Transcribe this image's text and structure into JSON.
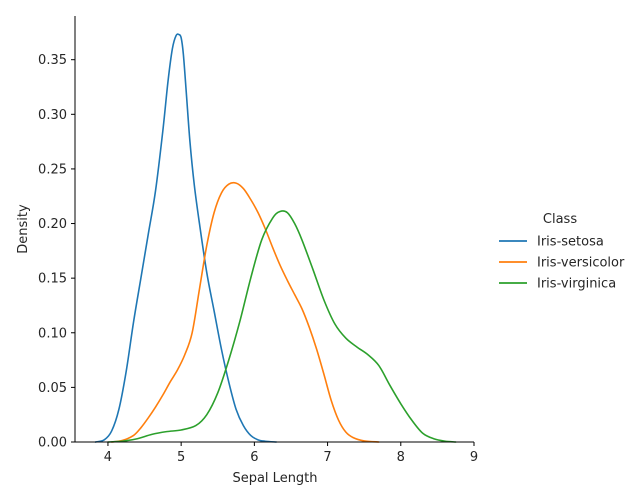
{
  "chart_data": {
    "type": "line",
    "title": "",
    "xlabel": "Sepal Length",
    "ylabel": "Density",
    "xlim": [
      3.55,
      9.0
    ],
    "ylim": [
      0,
      0.39
    ],
    "xticks": [
      4,
      5,
      6,
      7,
      8,
      9
    ],
    "yticks": [
      0.0,
      0.05,
      0.1,
      0.15,
      0.2,
      0.25,
      0.3,
      0.35
    ],
    "xtick_labels": [
      "4",
      "5",
      "6",
      "7",
      "8",
      "9"
    ],
    "ytick_labels": [
      "0.00",
      "0.05",
      "0.10",
      "0.15",
      "0.20",
      "0.25",
      "0.30",
      "0.35"
    ],
    "grid": false,
    "legend": {
      "title": "Class",
      "position": "right"
    },
    "series": [
      {
        "name": "Iris-setosa",
        "color": "#1f77b4",
        "x": [
          3.83,
          3.95,
          4.05,
          4.15,
          4.25,
          4.35,
          4.45,
          4.55,
          4.65,
          4.75,
          4.82,
          4.88,
          4.93,
          4.97,
          5.0,
          5.03,
          5.07,
          5.12,
          5.18,
          5.25,
          5.35,
          5.45,
          5.55,
          5.65,
          5.75,
          5.85,
          5.95,
          6.05,
          6.15,
          6.3
        ],
        "y": [
          0.0,
          0.002,
          0.01,
          0.03,
          0.065,
          0.11,
          0.15,
          0.19,
          0.23,
          0.285,
          0.33,
          0.36,
          0.372,
          0.373,
          0.37,
          0.355,
          0.32,
          0.275,
          0.235,
          0.2,
          0.155,
          0.12,
          0.085,
          0.055,
          0.03,
          0.015,
          0.006,
          0.002,
          0.0007,
          0.0
        ]
      },
      {
        "name": "Iris-versicolor",
        "color": "#ff7f0e",
        "x": [
          4.05,
          4.2,
          4.35,
          4.45,
          4.55,
          4.65,
          4.75,
          4.85,
          4.95,
          5.05,
          5.15,
          5.25,
          5.35,
          5.45,
          5.55,
          5.65,
          5.75,
          5.85,
          5.95,
          6.05,
          6.15,
          6.25,
          6.35,
          6.45,
          6.55,
          6.65,
          6.75,
          6.85,
          6.95,
          7.05,
          7.15,
          7.25,
          7.35,
          7.5,
          7.7
        ],
        "y": [
          0.0,
          0.0015,
          0.006,
          0.013,
          0.022,
          0.032,
          0.043,
          0.055,
          0.066,
          0.08,
          0.1,
          0.14,
          0.18,
          0.21,
          0.228,
          0.236,
          0.237,
          0.232,
          0.222,
          0.21,
          0.195,
          0.178,
          0.162,
          0.148,
          0.135,
          0.122,
          0.105,
          0.085,
          0.062,
          0.038,
          0.02,
          0.009,
          0.004,
          0.001,
          0.0
        ]
      },
      {
        "name": "Iris-virginica",
        "color": "#2ca02c",
        "x": [
          4.0,
          4.2,
          4.4,
          4.6,
          4.8,
          5.0,
          5.2,
          5.35,
          5.5,
          5.65,
          5.8,
          5.95,
          6.1,
          6.25,
          6.35,
          6.45,
          6.55,
          6.65,
          6.8,
          6.95,
          7.1,
          7.25,
          7.4,
          7.55,
          7.7,
          7.85,
          8.0,
          8.15,
          8.3,
          8.45,
          8.6,
          8.75
        ],
        "y": [
          0.0,
          0.0008,
          0.003,
          0.007,
          0.0095,
          0.011,
          0.015,
          0.025,
          0.045,
          0.075,
          0.11,
          0.15,
          0.185,
          0.205,
          0.211,
          0.21,
          0.2,
          0.185,
          0.158,
          0.13,
          0.108,
          0.095,
          0.087,
          0.08,
          0.07,
          0.052,
          0.035,
          0.02,
          0.008,
          0.003,
          0.0008,
          0.0
        ]
      }
    ]
  }
}
